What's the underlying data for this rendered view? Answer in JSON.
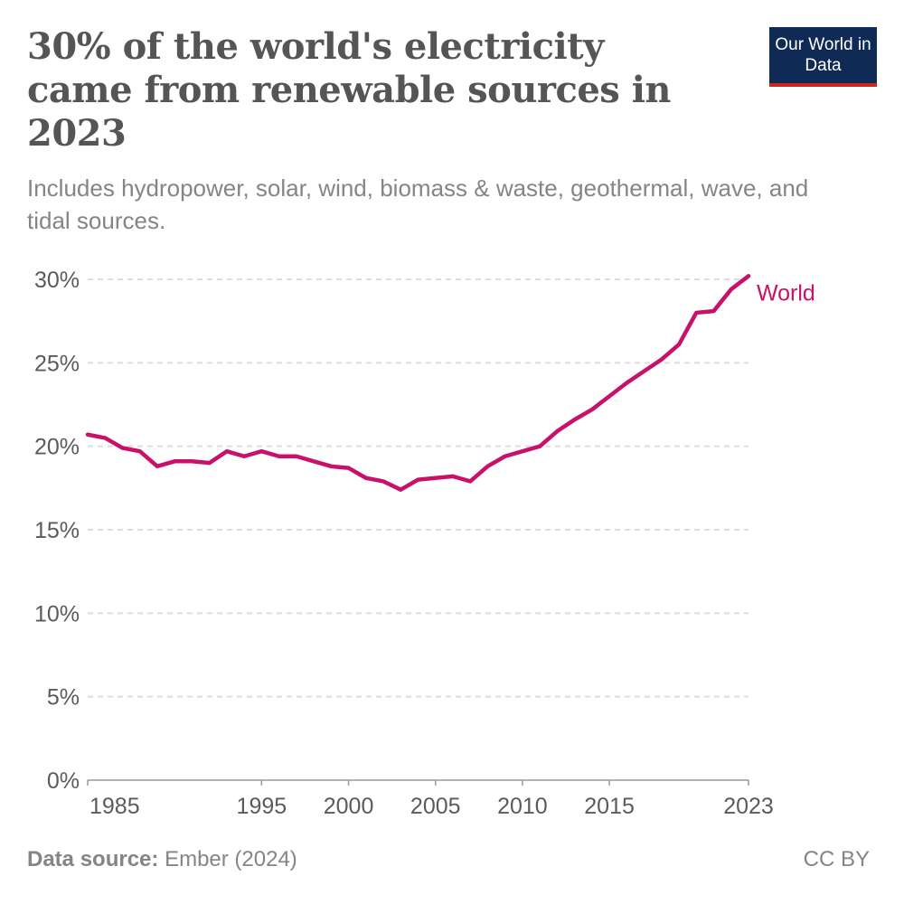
{
  "title": "30% of the world's electricity came from renewable sources in 2023",
  "subtitle": "Includes hydropower, solar, wind, biomass & waste, geothermal, wave, and tidal sources.",
  "logo": "Our World in Data",
  "footer": {
    "source_label": "Data source:",
    "source": "Ember (2024)",
    "license": "CC BY"
  },
  "colors": {
    "series": "#c8116a",
    "grid": "#dddddd",
    "text": "#5b5b5b"
  },
  "chart_data": {
    "type": "line",
    "title": "30% of the world's electricity came from renewable sources in 2023",
    "xlim": [
      1985,
      2023
    ],
    "ylim": [
      0,
      30
    ],
    "y_ticks": [
      0,
      5,
      10,
      15,
      20,
      25,
      30
    ],
    "y_tick_labels": [
      "0%",
      "5%",
      "10%",
      "15%",
      "20%",
      "25%",
      "30%"
    ],
    "x_ticks": [
      1985,
      1995,
      2000,
      2005,
      2010,
      2015,
      2023
    ],
    "x_tick_labels": [
      "1985",
      "1995",
      "2000",
      "2005",
      "2010",
      "2015",
      "2023"
    ],
    "grid": "horizontal dashed",
    "legend": "end-of-line label",
    "series": [
      {
        "name": "World",
        "x": [
          1985,
          1986,
          1987,
          1988,
          1989,
          1990,
          1991,
          1992,
          1993,
          1994,
          1995,
          1996,
          1997,
          1998,
          1999,
          2000,
          2001,
          2002,
          2003,
          2004,
          2005,
          2006,
          2007,
          2008,
          2009,
          2010,
          2011,
          2012,
          2013,
          2014,
          2015,
          2016,
          2017,
          2018,
          2019,
          2020,
          2021,
          2022,
          2023
        ],
        "values": [
          20.7,
          20.5,
          19.9,
          19.7,
          18.8,
          19.1,
          19.1,
          19.0,
          19.7,
          19.4,
          19.7,
          19.4,
          19.4,
          19.1,
          18.8,
          18.7,
          18.1,
          17.9,
          17.4,
          18.0,
          18.1,
          18.2,
          17.9,
          18.8,
          19.4,
          19.7,
          20.0,
          20.9,
          21.6,
          22.2,
          23.0,
          23.8,
          24.5,
          25.2,
          26.1,
          28.0,
          28.1,
          29.4,
          30.2
        ]
      }
    ]
  }
}
